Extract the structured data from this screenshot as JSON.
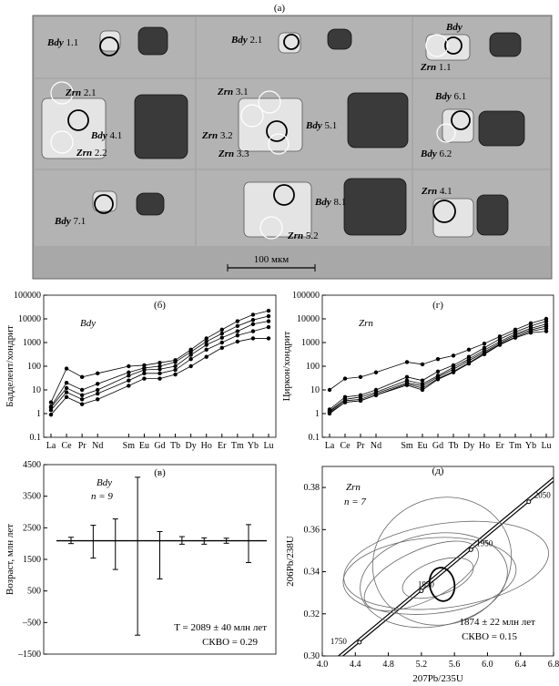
{
  "panel_a": {
    "label": "(а)",
    "scale_bar": "100 мкм",
    "cells": [
      {
        "labels": [
          {
            "mineral": "Bdy",
            "num": "1.1"
          }
        ]
      },
      {
        "labels": [
          {
            "mineral": "Bdy",
            "num": "2.1"
          }
        ]
      },
      {
        "labels": [
          {
            "mineral": "Bdy",
            "num": ""
          },
          {
            "mineral": "Zrn",
            "num": "1.1"
          }
        ]
      },
      {
        "labels": [
          {
            "mineral": "Zrn",
            "num": "2.1"
          },
          {
            "mineral": "Bdy",
            "num": "4.1"
          },
          {
            "mineral": "Zrn",
            "num": "2.2"
          }
        ]
      },
      {
        "labels": [
          {
            "mineral": "Zrn",
            "num": "3.1"
          },
          {
            "mineral": "Zrn",
            "num": "3.2"
          },
          {
            "mineral": "Zrn",
            "num": "3.3"
          },
          {
            "mineral": "Bdy",
            "num": "5.1"
          }
        ]
      },
      {
        "labels": [
          {
            "mineral": "Bdy",
            "num": "6.1"
          },
          {
            "mineral": "Bdy",
            "num": "6.2"
          }
        ]
      },
      {
        "labels": [
          {
            "mineral": "Bdy",
            "num": "7.1"
          }
        ]
      },
      {
        "labels": [
          {
            "mineral": "Bdy",
            "num": "8.1"
          },
          {
            "mineral": "Zrn",
            "num": "5.2"
          }
        ]
      },
      {
        "labels": [
          {
            "mineral": "Zrn",
            "num": "4.1"
          }
        ]
      }
    ]
  },
  "chart_data": [
    {
      "type": "line",
      "panel_label": "(б)",
      "mineral": "Bdy",
      "ylabel": "Бадделеит/хондрит",
      "yscale": "log",
      "ylim": [
        0.1,
        100000
      ],
      "yticks": [
        "0.1",
        "1",
        "10",
        "100",
        "1000",
        "10000",
        "100000"
      ],
      "categories": [
        "La",
        "Ce",
        "Pr",
        "Nd",
        "Sm",
        "Eu",
        "Gd",
        "Tb",
        "Dy",
        "Ho",
        "Er",
        "Tm",
        "Yb",
        "Lu"
      ],
      "series": [
        {
          "values": [
            3,
            80,
            35,
            50,
            100,
            110,
            140,
            180,
            500,
            1500,
            3500,
            8000,
            15000,
            22000
          ]
        },
        {
          "values": [
            2,
            20,
            10,
            18,
            55,
            85,
            100,
            150,
            400,
            1100,
            2400,
            5000,
            9000,
            13000
          ]
        },
        {
          "values": [
            1.8,
            12,
            6,
            10,
            40,
            70,
            75,
            100,
            300,
            800,
            1600,
            3000,
            6000,
            8000
          ]
        },
        {
          "values": [
            1.4,
            8,
            4,
            7,
            25,
            50,
            50,
            70,
            200,
            500,
            1000,
            2000,
            3000,
            4500
          ]
        },
        {
          "values": [
            0.9,
            5,
            2.5,
            4,
            15,
            30,
            30,
            45,
            100,
            250,
            600,
            1100,
            1500,
            1500
          ]
        }
      ]
    },
    {
      "type": "line",
      "panel_label": "(г)",
      "mineral": "Zrn",
      "ylabel": "Циркон/хондрит",
      "yscale": "log",
      "ylim": [
        0.1,
        100000
      ],
      "yticks": [
        "0.1",
        "1",
        "10",
        "100",
        "1000",
        "10000",
        "100000"
      ],
      "categories": [
        "La",
        "Ce",
        "Pr",
        "Nd",
        "Sm",
        "Eu",
        "Gd",
        "Tb",
        "Dy",
        "Ho",
        "Er",
        "Tm",
        "Yb",
        "Lu"
      ],
      "series": [
        {
          "values": [
            10,
            30,
            35,
            55,
            150,
            120,
            200,
            280,
            500,
            900,
            1800,
            3500,
            6500,
            10000
          ]
        },
        {
          "values": [
            1.5,
            5,
            6,
            10,
            35,
            25,
            60,
            110,
            250,
            600,
            1400,
            2800,
            5000,
            8000
          ]
        },
        {
          "values": [
            1.3,
            4,
            5,
            8,
            25,
            18,
            40,
            90,
            200,
            480,
            1100,
            2300,
            4000,
            6000
          ]
        },
        {
          "values": [
            1.2,
            3.5,
            4,
            7,
            20,
            15,
            35,
            75,
            170,
            400,
            950,
            2000,
            3400,
            5000
          ]
        },
        {
          "values": [
            1.1,
            3,
            3.5,
            6,
            18,
            12,
            30,
            60,
            140,
            350,
            850,
            1700,
            3000,
            4000
          ]
        },
        {
          "values": [
            1,
            3,
            3.5,
            6,
            16,
            10,
            28,
            55,
            130,
            320,
            800,
            1600,
            2600,
            3000
          ]
        }
      ]
    },
    {
      "type": "scatter",
      "panel_label": "(в)",
      "mineral": "Bdy",
      "n_label": "n = 9",
      "ylabel": "Возраст, млн лет",
      "ylim": [
        -1500,
        4500
      ],
      "yticks": [
        "-1500",
        "-500",
        "500",
        "1500",
        "2500",
        "3500",
        "4500"
      ],
      "mean_line": 2089,
      "points": [
        {
          "x": 1,
          "y": 2100,
          "err": 100
        },
        {
          "x": 2,
          "y": 2060,
          "err": 520
        },
        {
          "x": 3,
          "y": 1980,
          "err": 800
        },
        {
          "x": 4,
          "y": 1600,
          "err": 2500
        },
        {
          "x": 5,
          "y": 1630,
          "err": 750
        },
        {
          "x": 6,
          "y": 2100,
          "err": 120
        },
        {
          "x": 7,
          "y": 2080,
          "err": 100
        },
        {
          "x": 8,
          "y": 2090,
          "err": 80
        },
        {
          "x": 9,
          "y": 2000,
          "err": 600
        }
      ],
      "annotation_line1": "T = 2089 ± 40 млн лет",
      "annotation_line2": "СКВО = 0.29"
    },
    {
      "type": "scatter",
      "panel_label": "(д)",
      "mineral": "Zrn",
      "n_label": "n = 7",
      "xlabel": "207Pb/235U",
      "ylabel": "206Pb/238U",
      "xlim": [
        4.0,
        6.8
      ],
      "ylim": [
        0.3,
        0.39
      ],
      "xticks": [
        "4.0",
        "4.4",
        "4.8",
        "5.2",
        "5.6",
        "6.0",
        "6.4",
        "6.8"
      ],
      "yticks": [
        "0.30",
        "0.32",
        "0.34",
        "0.36",
        "0.38"
      ],
      "concordia_ages": [
        "1750",
        "1850",
        "1950",
        "2050"
      ],
      "ellipses": [
        {
          "cx": 5.45,
          "cy": 0.345,
          "rx": 0.85,
          "ry": 0.03,
          "angle": -20
        },
        {
          "cx": 5.35,
          "cy": 0.336,
          "rx": 0.9,
          "ry": 0.022,
          "angle": -10
        },
        {
          "cx": 5.3,
          "cy": 0.338,
          "rx": 1.05,
          "ry": 0.018,
          "angle": -5
        },
        {
          "cx": 5.5,
          "cy": 0.343,
          "rx": 1.25,
          "ry": 0.02,
          "angle": -8
        },
        {
          "cx": 5.2,
          "cy": 0.338,
          "rx": 0.75,
          "ry": 0.012,
          "angle": -25
        },
        {
          "cx": 5.4,
          "cy": 0.337,
          "rx": 0.45,
          "ry": 0.008,
          "angle": -20
        },
        {
          "cx": 5.45,
          "cy": 0.334,
          "rx": 0.15,
          "ry": 0.008,
          "angle": -10
        }
      ],
      "annotation_line1": "1874 ± 22 млн лет",
      "annotation_line2": "СКВО = 0.15"
    }
  ]
}
